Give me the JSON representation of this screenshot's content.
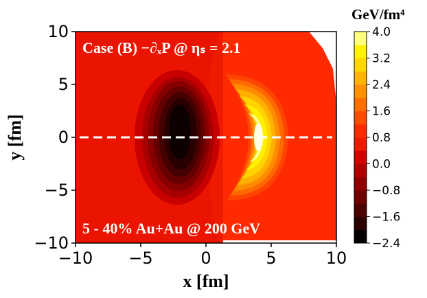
{
  "chart_data": {
    "type": "heatmap",
    "subtype": "filled-contour",
    "annotation_top": "Case (B)  −∂ₓP @ ηₛ = 2.1",
    "annotation_bottom": "5 - 40% Au+Au @ 200 GeV",
    "xlabel": "x [fm]",
    "ylabel": "y [fm]",
    "xlim": [
      -10,
      10
    ],
    "ylim": [
      -10,
      10
    ],
    "xticks": [
      "−10",
      "−5",
      "0",
      "5",
      "10"
    ],
    "yticks": [
      "10",
      "5",
      "0",
      "−5",
      "−10"
    ],
    "colorbar": {
      "unit": "GeV/fm⁴",
      "range": [
        -2.4,
        4.0
      ],
      "ticks": [
        "4.0",
        "3.2",
        "2.4",
        "1.6",
        "0.8",
        "0.0",
        "−0.8",
        "−1.6",
        "−2.4"
      ],
      "levels": [
        -2.4,
        -2.0,
        -1.6,
        -1.2,
        -0.8,
        -0.4,
        0.0,
        0.4,
        0.8,
        1.2,
        1.6,
        2.0,
        2.4,
        2.8,
        3.2,
        3.6,
        4.0
      ],
      "colors": [
        "#050000",
        "#2a0000",
        "#4d0000",
        "#6e0000",
        "#900000",
        "#b20000",
        "#d40000",
        "#ef1a00",
        "#ff2a00",
        "#ff4c00",
        "#ff7000",
        "#ff9200",
        "#ffb400",
        "#ffd600",
        "#fff200",
        "#ffff80",
        "#ffffe6"
      ],
      "colormap": "hot"
    },
    "reference_line": {
      "y": 0,
      "style": "dashed",
      "color": "#ffffff"
    },
    "field_features": [
      {
        "name": "negative-lobe",
        "x": -2.4,
        "y": 0.0,
        "value": -2.4
      },
      {
        "name": "positive-lobe",
        "x": 3.4,
        "y": 0.0,
        "value": 4.0
      }
    ]
  }
}
